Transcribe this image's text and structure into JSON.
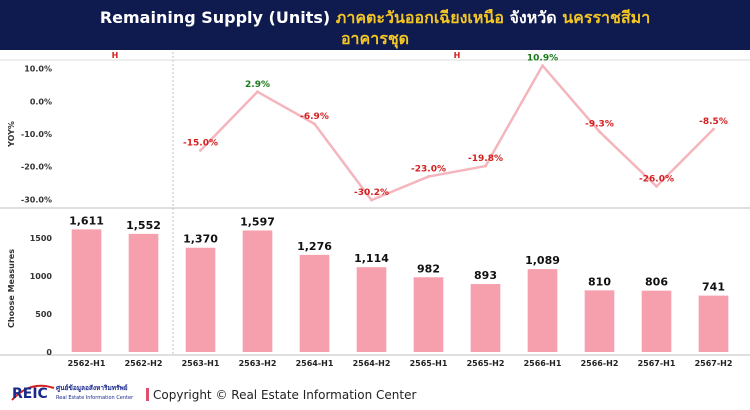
{
  "header": {
    "title_part1": "Remaining Supply (Units)",
    "title_part2": "ภาคตะวันออกเฉียงเหนือ",
    "title_part3": "จังหวัด",
    "title_part4": "นครราชสีมา",
    "subtitle": "อาคารชุด"
  },
  "colors": {
    "header_bg": "#0f1a4f",
    "highlight": "#f3c623",
    "bar": "#f7a0ad",
    "line": "#f5b5bd",
    "negative": "#d42020",
    "positive": "#1a7a1a"
  },
  "chart_data": [
    {
      "type": "line",
      "ylabel": "YOY%",
      "ylim": [
        -32,
        12
      ],
      "yticks": [
        "10.0%",
        "0.0%",
        "-10.0%",
        "-20.0%",
        "-30.0%"
      ],
      "ytick_values": [
        10,
        0,
        -10,
        -20,
        -30
      ],
      "group_labels": [
        {
          "label": "H",
          "first": 0,
          "last": 1
        },
        {
          "label": "H",
          "first": 2,
          "last": 11
        }
      ],
      "categories": [
        "2562-H1",
        "2562-H2",
        "2563-H1",
        "2563-H2",
        "2564-H1",
        "2564-H2",
        "2565-H1",
        "2565-H2",
        "2566-H1",
        "2566-H2",
        "2567-H1",
        "2567-H2"
      ],
      "values": [
        null,
        null,
        -15.0,
        2.9,
        -6.9,
        -30.2,
        -23.0,
        -19.8,
        10.9,
        -9.3,
        -26.0,
        -8.5
      ],
      "labels": [
        "",
        "",
        "-15.0%",
        "2.9%",
        "-6.9%",
        "-30.2%",
        "-23.0%",
        "-19.8%",
        "10.9%",
        "-9.3%",
        "-26.0%",
        "-8.5%"
      ]
    },
    {
      "type": "bar",
      "ylabel": "Choose Measures",
      "ylim": [
        0,
        1800
      ],
      "yticks": [
        "1500",
        "1000",
        "500",
        "0"
      ],
      "ytick_values": [
        1500,
        1000,
        500,
        0
      ],
      "categories": [
        "2562-H1",
        "2562-H2",
        "2563-H1",
        "2563-H2",
        "2564-H1",
        "2564-H2",
        "2565-H1",
        "2565-H2",
        "2566-H1",
        "2566-H2",
        "2567-H1",
        "2567-H2"
      ],
      "values": [
        1611,
        1552,
        1370,
        1597,
        1276,
        1114,
        982,
        893,
        1089,
        810,
        806,
        741
      ],
      "labels": [
        "1,611",
        "1,552",
        "1,370",
        "1,597",
        "1,276",
        "1,114",
        "982",
        "893",
        "1,089",
        "810",
        "806",
        "741"
      ]
    }
  ],
  "footer": {
    "logo_text": "REIC",
    "org_thai": "ศูนย์ข้อมูลอสังหาริมทรัพย์",
    "org_en": "Real Estate Information Center",
    "copyright": "Copyright © Real Estate Information Center"
  }
}
